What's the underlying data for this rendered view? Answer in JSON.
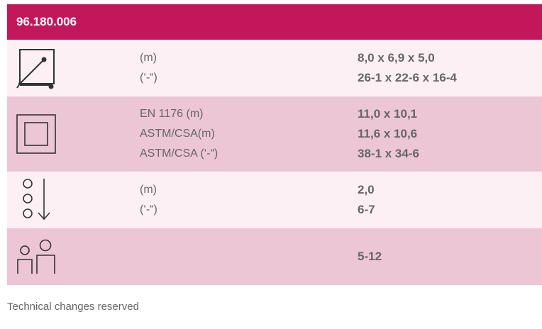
{
  "header": {
    "code": "96.180.006"
  },
  "rows": [
    {
      "icon": "dimensions-cube-icon",
      "labels": [
        "(m)",
        "(‘-“)"
      ],
      "values": [
        "8,0 x 6,9 x 5,0",
        "26-1 x 22-6 x 16-4"
      ]
    },
    {
      "icon": "safety-area-square-icon",
      "labels": [
        "EN 1176 (m)",
        "ASTM/CSA(m)",
        "ASTM/CSA (‘-“)"
      ],
      "values": [
        "11,0 x 10,1",
        "11,6 x 10,6",
        "38-1 x 34-6"
      ]
    },
    {
      "icon": "fall-height-icon",
      "labels": [
        "(m)",
        "(‘-“)"
      ],
      "values": [
        "2,0",
        "6-7"
      ]
    },
    {
      "icon": "age-group-people-icon",
      "labels": [],
      "values": [
        "5-12"
      ]
    }
  ],
  "footer": {
    "note": "Technical changes reserved"
  },
  "colors": {
    "accent": "#c2185b",
    "row_light": "#fcf0f4",
    "row_dark": "#ecc6d5",
    "text": "#666666"
  }
}
